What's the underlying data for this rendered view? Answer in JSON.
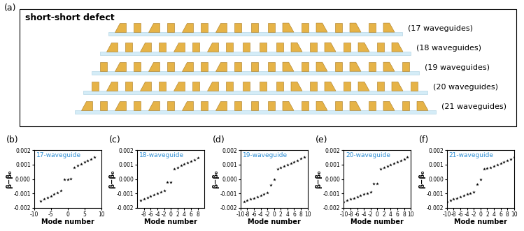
{
  "panel_a": {
    "label": "(a)",
    "title": "short-short defect",
    "rows": [
      {
        "waveguides": 17,
        "label": "(17 waveguides)"
      },
      {
        "waveguides": 18,
        "label": "(18 waveguides)"
      },
      {
        "waveguides": 19,
        "label": "(19 waveguides)"
      },
      {
        "waveguides": 20,
        "label": "(20 waveguides)"
      },
      {
        "waveguides": 21,
        "label": "(21 waveguides)"
      }
    ]
  },
  "chart_data": [
    {
      "type": "scatter",
      "title": "(b)",
      "subtitle": "17-waveguide",
      "x_label": "Mode number",
      "y_label": "β−β₀",
      "marker": "star",
      "color": "#000000",
      "x": [
        -8,
        -7,
        -6,
        -5,
        -4,
        -3,
        -2,
        -1,
        0,
        1,
        2,
        3,
        4,
        5,
        6,
        7,
        8
      ],
      "values": [
        -0.0015,
        -0.0014,
        -0.00128,
        -0.00117,
        -0.00105,
        -0.00095,
        -0.00082,
        -2e-05,
        0.0,
        2e-05,
        0.00082,
        0.00095,
        0.00105,
        0.00117,
        0.00128,
        0.0014,
        0.0015
      ],
      "xlim": [
        -10,
        10
      ],
      "xticks": [
        -10,
        -5,
        0,
        5,
        10
      ],
      "ylim": [
        -0.002,
        0.002
      ],
      "yticks": [
        -0.002,
        -0.001,
        {
          "value": 0,
          "label": "0.000"
        },
        0.001,
        0.002
      ]
    },
    {
      "type": "scatter",
      "title": "(c)",
      "subtitle": "18-waveguide",
      "x_label": "Mode number",
      "y_label": "β−β₀",
      "marker": "star",
      "color": "#000000",
      "x": [
        -9,
        -8,
        -7,
        -6,
        -5,
        -4,
        -3,
        -2,
        -1,
        0,
        1,
        2,
        3,
        4,
        5,
        6,
        7,
        8
      ],
      "values": [
        -0.00148,
        -0.00138,
        -0.00128,
        -0.00118,
        -0.00108,
        -0.00098,
        -0.00088,
        -0.00078,
        -0.00022,
        -0.0002,
        0.00072,
        0.00082,
        0.00092,
        0.00102,
        0.00112,
        0.00122,
        0.00135,
        0.00148
      ],
      "xlim": [
        -10,
        10
      ],
      "xticks": [
        -8,
        -6,
        -4,
        -2,
        0,
        2,
        4,
        6,
        8
      ],
      "ylim": [
        -0.002,
        0.002
      ],
      "yticks": [
        -0.002,
        -0.001,
        {
          "value": 0,
          "label": "0.000"
        },
        0.001,
        0.002
      ]
    },
    {
      "type": "scatter",
      "title": "(d)",
      "subtitle": "19-waveguide",
      "x_label": "Mode number",
      "y_label": "β−β₀",
      "marker": "star",
      "color": "#000000",
      "x": [
        -9,
        -8,
        -7,
        -6,
        -5,
        -4,
        -3,
        -2,
        -1,
        0,
        1,
        2,
        3,
        4,
        5,
        6,
        7,
        8,
        9
      ],
      "values": [
        -0.00155,
        -0.00148,
        -0.0014,
        -0.00132,
        -0.00122,
        -0.00112,
        -0.00102,
        -0.00092,
        -0.0004,
        0.0,
        0.0007,
        0.00078,
        0.00088,
        0.00098,
        0.00108,
        0.00118,
        0.0013,
        0.00142,
        0.00152
      ],
      "xlim": [
        -10,
        10
      ],
      "xticks": [
        -10,
        -8,
        -6,
        -4,
        -2,
        0,
        2,
        4,
        6,
        8,
        10
      ],
      "ylim": [
        -0.002,
        0.002
      ],
      "yticks": [
        -0.002,
        -0.001,
        {
          "value": 0,
          "label": "0.000"
        },
        0.001,
        0.002
      ]
    },
    {
      "type": "scatter",
      "title": "(e)",
      "subtitle": "20-waveguide",
      "x_label": "Mode number",
      "y_label": "β−β₀",
      "marker": "star",
      "color": "#000000",
      "x": [
        -10,
        -9,
        -8,
        -7,
        -6,
        -5,
        -4,
        -3,
        -2,
        -1,
        0,
        1,
        2,
        3,
        4,
        5,
        6,
        7,
        8,
        9
      ],
      "values": [
        -0.00155,
        -0.00148,
        -0.0014,
        -0.00132,
        -0.00124,
        -0.00115,
        -0.00106,
        -0.00097,
        -0.00088,
        -0.0003,
        -0.0003,
        0.00072,
        0.0008,
        0.0009,
        0.001,
        0.0011,
        0.0012,
        0.0013,
        0.0014,
        0.0015
      ],
      "xlim": [
        -10,
        10
      ],
      "xticks": [
        -10,
        -8,
        -6,
        -4,
        -2,
        0,
        2,
        4,
        6,
        8,
        10
      ],
      "ylim": [
        -0.002,
        0.002
      ],
      "yticks": [
        -0.002,
        -0.001,
        {
          "value": 0,
          "label": "0.000"
        },
        0.001,
        0.002
      ]
    },
    {
      "type": "scatter",
      "title": "(f)",
      "subtitle": "21-waveguide",
      "x_label": "Mode number",
      "y_label": "β−β₀",
      "marker": "star",
      "color": "#000000",
      "x": [
        -10,
        -9,
        -8,
        -7,
        -6,
        -5,
        -4,
        -3,
        -2,
        -1,
        0,
        1,
        2,
        3,
        4,
        5,
        6,
        7,
        8,
        9,
        10
      ],
      "values": [
        -0.00155,
        -0.00148,
        -0.0014,
        -0.00132,
        -0.00124,
        -0.00115,
        -0.00106,
        -0.00097,
        -0.00088,
        -0.00035,
        -2e-05,
        0.0007,
        0.00075,
        0.00082,
        0.0009,
        0.001,
        0.0011,
        0.0012,
        0.0013,
        0.0014,
        0.0015
      ],
      "xlim": [
        -10,
        10
      ],
      "xticks": [
        -10,
        -8,
        -6,
        -4,
        -2,
        0,
        2,
        4,
        6,
        8,
        10
      ],
      "ylim": [
        -0.002,
        0.002
      ],
      "yticks": [
        -0.002,
        -0.001,
        {
          "value": 0,
          "label": "0.000"
        },
        0.001,
        0.002
      ]
    }
  ]
}
